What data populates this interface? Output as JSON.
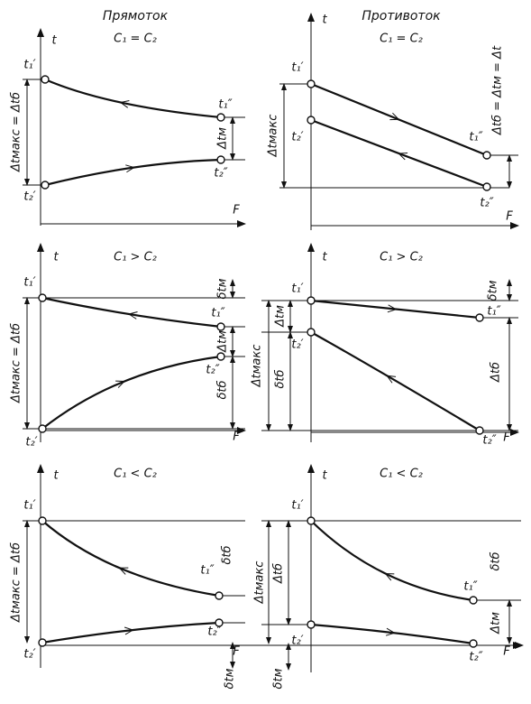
{
  "headers": [
    "Прямоток",
    "Противоток"
  ],
  "panels": [
    {
      "condition": "C₁ = C₂",
      "labels": [
        "t",
        "t₁′",
        "t₁″",
        "t₂′",
        "t₂″",
        "F",
        "Δtмакс = Δtб",
        "Δtм"
      ]
    },
    {
      "condition": "C₁ = C₂",
      "labels": [
        "t",
        "t₁′",
        "t₁″",
        "t₂′",
        "t₂″",
        "F",
        "Δtмакс",
        "Δtб = Δtм = Δt"
      ]
    },
    {
      "condition": "C₁ > C₂",
      "labels": [
        "t",
        "t₁′",
        "t₁″",
        "t₂′",
        "t₂″",
        "F",
        "Δtмакс = Δtб",
        "δtм",
        "Δtм",
        "δtб"
      ]
    },
    {
      "condition": "C₁ > C₂",
      "labels": [
        "t",
        "t₁′",
        "t₁″",
        "t₂′",
        "t₂″",
        "F",
        "Δtм",
        "Δtмакс",
        "δtб",
        "δtм",
        "Δtб"
      ]
    },
    {
      "condition": "C₁ < C₂",
      "labels": [
        "t",
        "t₁′",
        "t₁″",
        "t₂′",
        "t₂″",
        "F",
        "Δtмакс = Δtб",
        "δtб",
        "δtм"
      ]
    },
    {
      "condition": "C₁ < C₂",
      "labels": [
        "t",
        "t₁′",
        "t₁″",
        "t₂′",
        "t₂″",
        "F",
        "Δtмакс",
        "Δtб",
        "δtб",
        "Δtм",
        "δtм"
      ]
    }
  ]
}
